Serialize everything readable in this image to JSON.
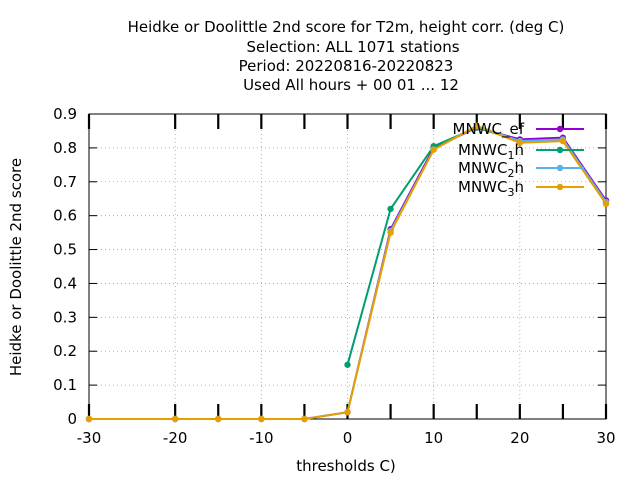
{
  "chart_data": {
    "type": "line",
    "title_lines": [
      "Heidke or Doolittle 2nd score  for T2m, height corr. (deg C)",
      "Selection: ALL   1071 stations",
      "Period: 20220816-20220823",
      "Used  All hours  + 00 01 ... 12"
    ],
    "xlabel": "thresholds C)",
    "ylabel": "Heidke or Doolittle 2nd score",
    "xlim": [
      -30,
      30
    ],
    "ylim": [
      0,
      0.9
    ],
    "x_ticks": [
      -30,
      -20,
      -10,
      0,
      10,
      20,
      30
    ],
    "y_ticks": [
      0,
      0.1,
      0.2,
      0.3,
      0.4,
      0.5,
      0.6,
      0.7,
      0.8,
      0.9
    ],
    "x_tick_labels": [
      "-30",
      "-20",
      "-10",
      "0",
      "10",
      "20",
      "30"
    ],
    "y_tick_labels": [
      "0",
      "0.1",
      "0.2",
      "0.3",
      "0.4",
      "0.5",
      "0.6",
      "0.7",
      "0.8",
      "0.9"
    ],
    "threshold_marks": [
      -30,
      -20,
      -15,
      -10,
      -5,
      0,
      5,
      10,
      15,
      20,
      25,
      30
    ],
    "grid": true,
    "legend_position": "top-right",
    "series": [
      {
        "name": "MNWC_ef",
        "legend_main": "MNWC_ef",
        "legend_sub": "",
        "legend_suffix": "",
        "color": "#9400d3",
        "marker": "circle",
        "x": [
          -30,
          -20,
          -15,
          -10,
          -5,
          0,
          5,
          10,
          15,
          20,
          25,
          30
        ],
        "y": [
          0,
          0,
          0,
          0,
          0,
          0.02,
          0.56,
          0.8,
          0.86,
          0.825,
          0.83,
          0.645
        ]
      },
      {
        "name": "MNWC1h",
        "legend_main": "MNWC",
        "legend_sub": "1",
        "legend_suffix": "h",
        "color": "#009e73",
        "marker": "circle",
        "x": [
          0,
          5,
          10,
          15,
          20,
          25,
          30
        ],
        "y": [
          0.16,
          0.62,
          0.805,
          0.86,
          0.82,
          0.825,
          0.64
        ]
      },
      {
        "name": "MNWC2h",
        "legend_main": "MNWC",
        "legend_sub": "2",
        "legend_suffix": "h",
        "color": "#56b4e9",
        "marker": "circle",
        "x": [
          -30,
          -20,
          -15,
          -10,
          -5,
          0,
          5,
          10,
          15,
          20,
          25,
          30
        ],
        "y": [
          0,
          0,
          0,
          0,
          0,
          0.02,
          0.555,
          0.795,
          0.865,
          0.82,
          0.825,
          0.64
        ]
      },
      {
        "name": "MNWC3h",
        "legend_main": "MNWC",
        "legend_sub": "3",
        "legend_suffix": "h",
        "color": "#e69f00",
        "marker": "circle",
        "x": [
          -30,
          -20,
          -15,
          -10,
          -5,
          0,
          5,
          10,
          15,
          20,
          25,
          30
        ],
        "y": [
          0,
          0,
          0,
          0,
          0,
          0.02,
          0.55,
          0.795,
          0.865,
          0.815,
          0.82,
          0.635
        ]
      }
    ]
  }
}
